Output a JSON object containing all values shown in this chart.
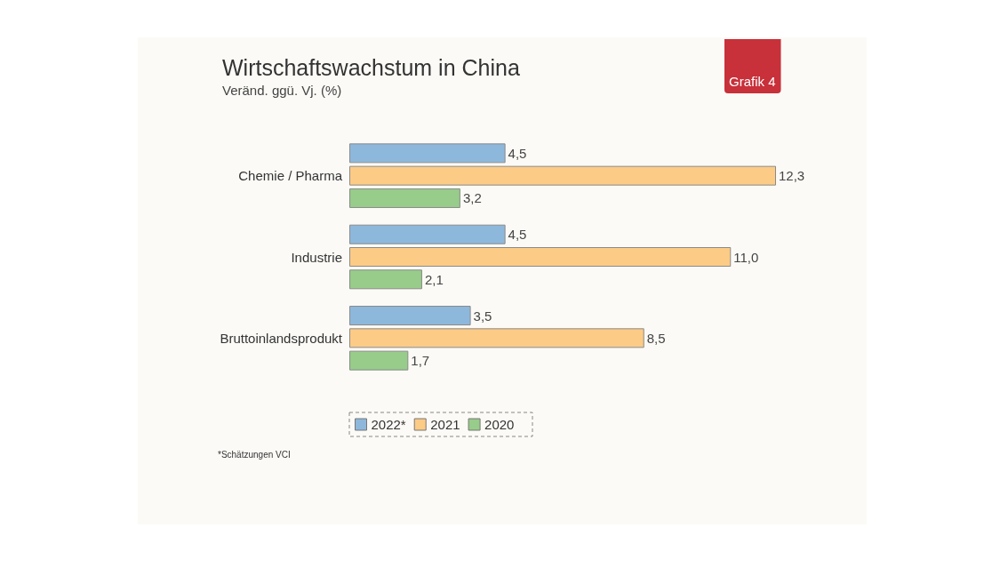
{
  "chart_data": {
    "type": "bar",
    "orientation": "horizontal",
    "title": "Wirtschaftswachstum in China",
    "subtitle": "Veränd. ggü. Vj. (%)",
    "categories": [
      "Chemie / Pharma",
      "Industrie",
      "Bruttoinlandsprodukt"
    ],
    "series": [
      {
        "name": "2022*",
        "color": "#8db8dc",
        "values": [
          4.5,
          4.5,
          3.5
        ],
        "value_labels": [
          "4,5",
          "4,5",
          "3,5"
        ]
      },
      {
        "name": "2021",
        "color": "#fccb85",
        "values": [
          12.3,
          11.0,
          8.5
        ],
        "value_labels": [
          "12,3",
          "11,0",
          "8,5"
        ]
      },
      {
        "name": "2020",
        "color": "#97cc8a",
        "values": [
          3.2,
          2.1,
          1.7
        ],
        "value_labels": [
          "3,2",
          "2,1",
          "1,7"
        ]
      }
    ],
    "legend": "bottom",
    "annotations": [
      "Grafik 4",
      "*Schätzungen VCI"
    ]
  }
}
